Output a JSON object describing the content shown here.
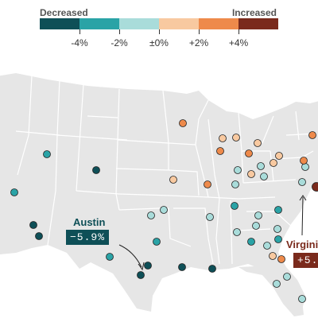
{
  "legend": {
    "left_label": "Decreased",
    "right_label": "Increased",
    "swatches": [
      "#0e4f57",
      "#2aa3a6",
      "#a9dcda",
      "#f8c9a0",
      "#ee8a4b",
      "#7a2a1c"
    ],
    "ticks": [
      "-4%",
      "-2%",
      "±0%",
      "+2%",
      "+4%"
    ]
  },
  "map": {
    "land_color": "#e6e6e6",
    "border_color": "#ffffff",
    "dot_outline": "#222222"
  },
  "dots": [
    {
      "category": 1,
      "color": "#2aa3a6"
    },
    {
      "category": 0,
      "color": "#0e4f57"
    },
    {
      "category": 1,
      "color": "#2aa3a6"
    },
    {
      "category": 0,
      "color": "#0e4f57"
    },
    {
      "category": 0,
      "color": "#0e4f57"
    },
    {
      "category": 2,
      "color": "#a9dcda"
    },
    {
      "category": 2,
      "color": "#a9dcda"
    },
    {
      "category": 1,
      "color": "#2aa3a6"
    },
    {
      "category": 0,
      "color": "#0e4f57"
    },
    {
      "category": 0,
      "color": "#0e4f57"
    },
    {
      "category": 1,
      "color": "#2aa3a6"
    },
    {
      "category": 0,
      "color": "#0e4f57"
    },
    {
      "category": 3,
      "color": "#f8c9a0"
    },
    {
      "category": 4,
      "color": "#ee8a4b"
    },
    {
      "category": 4,
      "color": "#ee8a4b"
    },
    {
      "category": 3,
      "color": "#f8c9a0"
    },
    {
      "category": 3,
      "color": "#f8c9a0"
    },
    {
      "category": 3,
      "color": "#f8c9a0"
    },
    {
      "category": 4,
      "color": "#ee8a4b"
    },
    {
      "category": 3,
      "color": "#f8c9a0"
    },
    {
      "category": 2,
      "color": "#a9dcda"
    },
    {
      "category": 4,
      "color": "#ee8a4b"
    },
    {
      "category": 2,
      "color": "#a9dcda"
    },
    {
      "category": 2,
      "color": "#a9dcda"
    },
    {
      "category": 3,
      "color": "#f8c9a0"
    },
    {
      "category": 2,
      "color": "#a9dcda"
    },
    {
      "category": 2,
      "color": "#a9dcda"
    },
    {
      "category": 1,
      "color": "#2aa3a6"
    },
    {
      "category": 2,
      "color": "#a9dcda"
    },
    {
      "category": 2,
      "color": "#a9dcda"
    },
    {
      "category": 2,
      "color": "#a9dcda"
    },
    {
      "category": 1,
      "color": "#2aa3a6"
    },
    {
      "category": 2,
      "color": "#a9dcda"
    },
    {
      "category": 3,
      "color": "#f8c9a0"
    },
    {
      "category": 2,
      "color": "#a9dcda"
    },
    {
      "category": 4,
      "color": "#ee8a4b"
    },
    {
      "category": 4,
      "color": "#ee8a4b"
    },
    {
      "category": 2,
      "color": "#a9dcda"
    },
    {
      "category": 5,
      "color": "#7a2a1c"
    },
    {
      "category": 1,
      "color": "#2aa3a6"
    },
    {
      "category": 2,
      "color": "#a9dcda"
    },
    {
      "category": 1,
      "color": "#2aa3a6"
    },
    {
      "category": 3,
      "color": "#f8c9a0"
    },
    {
      "category": 4,
      "color": "#ee8a4b"
    },
    {
      "category": 2,
      "color": "#a9dcda"
    },
    {
      "category": 2,
      "color": "#a9dcda"
    },
    {
      "category": 0,
      "color": "#0e4f57"
    },
    {
      "category": 2,
      "color": "#a9dcda"
    }
  ],
  "callouts": {
    "austin": {
      "name": "Austin",
      "value": "−5.9%",
      "color": "#0e4f57"
    },
    "virginia": {
      "name": "Virginia",
      "value": "+5.",
      "color": "#7a2a1c"
    }
  }
}
